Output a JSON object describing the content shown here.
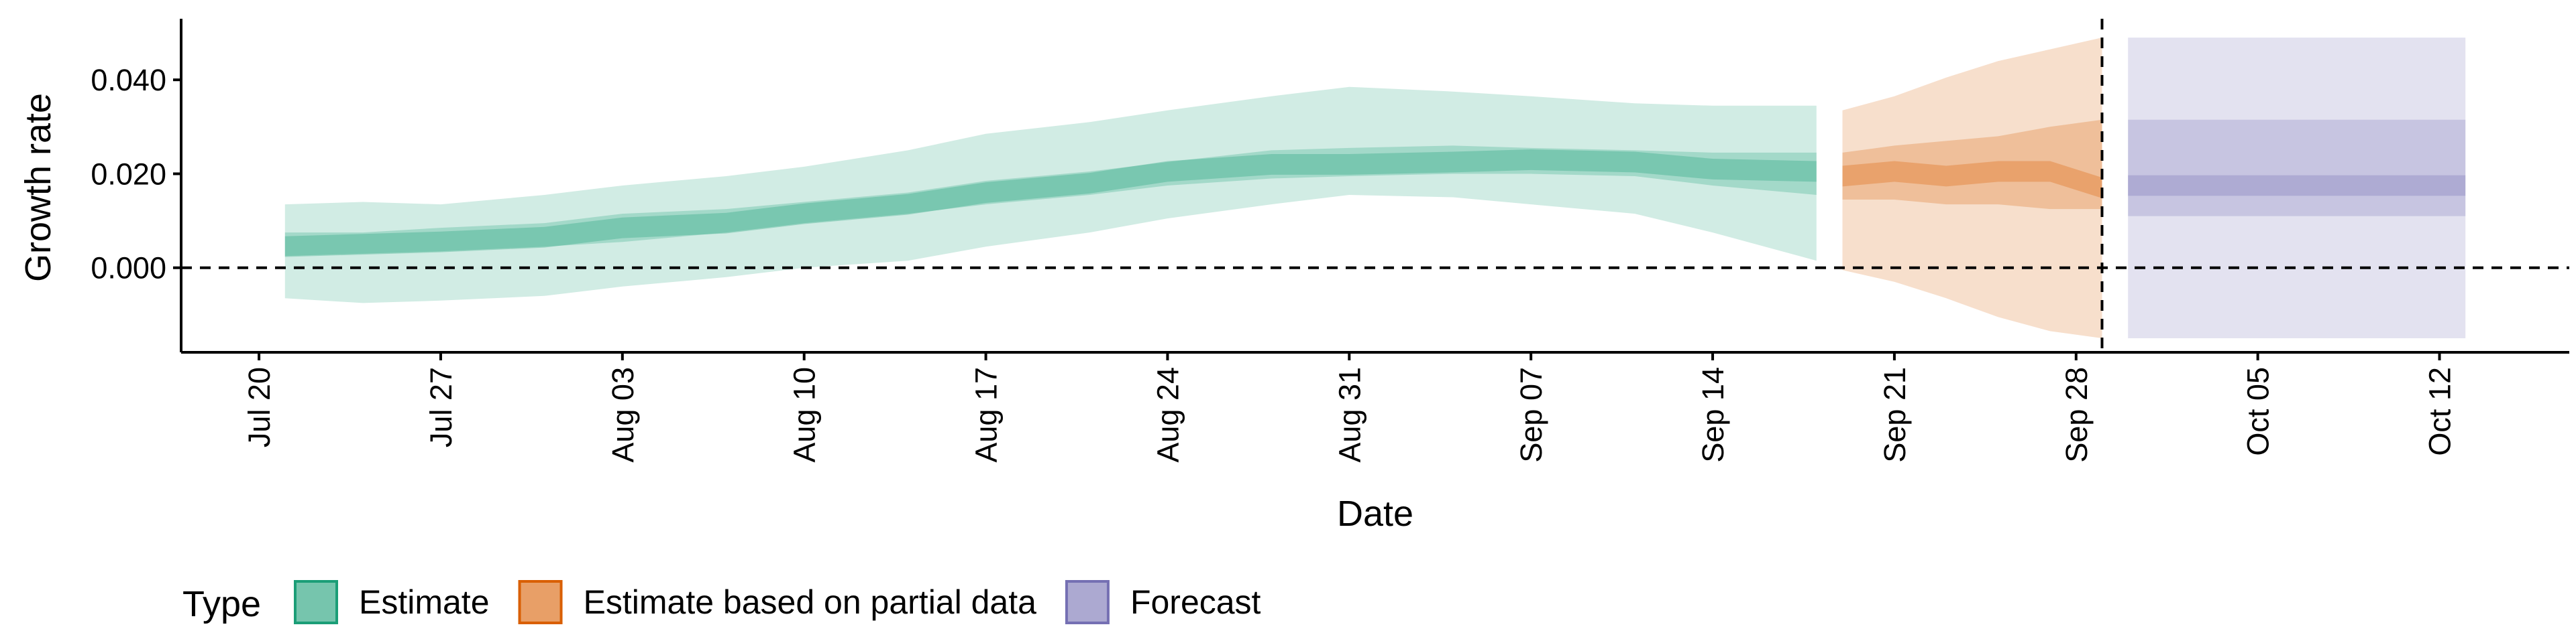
{
  "chart_data": {
    "type": "area",
    "xlabel": "Date",
    "ylabel": "Growth rate",
    "x_ticks": [
      "Jul 20",
      "Jul 27",
      "Aug 03",
      "Aug 10",
      "Aug 17",
      "Aug 24",
      "Aug 31",
      "Sep 07",
      "Sep 14",
      "Sep 21",
      "Sep 28",
      "Oct 05",
      "Oct 12"
    ],
    "y_ticks": [
      "0.000",
      "0.020",
      "0.040"
    ],
    "x_range": [
      "2020-07-17",
      "2020-10-17"
    ],
    "ylim": [
      -0.018,
      0.053
    ],
    "reference_lines": {
      "horizontal_y": 0.0,
      "vertical_date": "2020-09-29"
    },
    "legend": {
      "title": "Type",
      "position": "bottom-left"
    },
    "colors": {
      "Estimate": "#1b9e77",
      "Estimate based on partial data": "#d95f02",
      "Forecast": "#7570b3"
    },
    "series": [
      {
        "name": "Estimate",
        "dates": [
          "2020-07-21",
          "2020-07-24",
          "2020-07-27",
          "2020-07-31",
          "2020-08-03",
          "2020-08-07",
          "2020-08-10",
          "2020-08-14",
          "2020-08-17",
          "2020-08-21",
          "2020-08-24",
          "2020-08-28",
          "2020-08-31",
          "2020-09-04",
          "2020-09-07",
          "2020-09-11",
          "2020-09-14",
          "2020-09-18"
        ],
        "median": [
          0.0045,
          0.005,
          0.0055,
          0.0065,
          0.0085,
          0.0095,
          0.0115,
          0.0135,
          0.016,
          0.018,
          0.0205,
          0.022,
          0.022,
          0.0225,
          0.023,
          0.0225,
          0.021,
          0.0205
        ],
        "lower_50": [
          0.0025,
          0.003,
          0.0035,
          0.0045,
          0.0055,
          0.0075,
          0.0095,
          0.0115,
          0.0135,
          0.0155,
          0.0175,
          0.019,
          0.0195,
          0.02,
          0.02,
          0.0195,
          0.0175,
          0.0155
        ],
        "upper_50": [
          0.0075,
          0.0075,
          0.0085,
          0.0095,
          0.0115,
          0.0125,
          0.014,
          0.016,
          0.0185,
          0.0205,
          0.0225,
          0.025,
          0.0255,
          0.026,
          0.0255,
          0.025,
          0.0245,
          0.0245
        ],
        "lower_90": [
          -0.0065,
          -0.0075,
          -0.007,
          -0.006,
          -0.004,
          -0.002,
          0.0,
          0.0015,
          0.0045,
          0.0075,
          0.0105,
          0.0135,
          0.0155,
          0.015,
          0.0135,
          0.0115,
          0.0075,
          0.0015
        ],
        "upper_90": [
          0.0135,
          0.014,
          0.0135,
          0.0155,
          0.0175,
          0.0195,
          0.0215,
          0.025,
          0.0285,
          0.031,
          0.0335,
          0.0365,
          0.0385,
          0.0375,
          0.0365,
          0.035,
          0.0345,
          0.0345
        ]
      },
      {
        "name": "Estimate based on partial data",
        "dates": [
          "2020-09-19",
          "2020-09-21",
          "2020-09-23",
          "2020-09-25",
          "2020-09-27",
          "2020-09-29"
        ],
        "median": [
          0.0195,
          0.0205,
          0.0195,
          0.0205,
          0.0205,
          0.017
        ],
        "lower_50": [
          0.0145,
          0.0145,
          0.0135,
          0.0135,
          0.0125,
          0.0125
        ],
        "upper_50": [
          0.0245,
          0.026,
          0.027,
          0.028,
          0.03,
          0.0315
        ],
        "lower_90": [
          -0.0005,
          -0.003,
          -0.0065,
          -0.0105,
          -0.0135,
          -0.015
        ],
        "upper_90": [
          0.0335,
          0.0365,
          0.0405,
          0.044,
          0.0465,
          0.049
        ]
      },
      {
        "name": "Forecast",
        "dates": [
          "2020-09-30",
          "2020-10-13"
        ],
        "median": [
          0.0175,
          0.0175
        ],
        "lower_50": [
          0.011,
          0.011
        ],
        "upper_50": [
          0.0315,
          0.0315
        ],
        "lower_90": [
          -0.015,
          -0.015
        ],
        "upper_90": [
          0.049,
          0.049
        ]
      }
    ]
  }
}
